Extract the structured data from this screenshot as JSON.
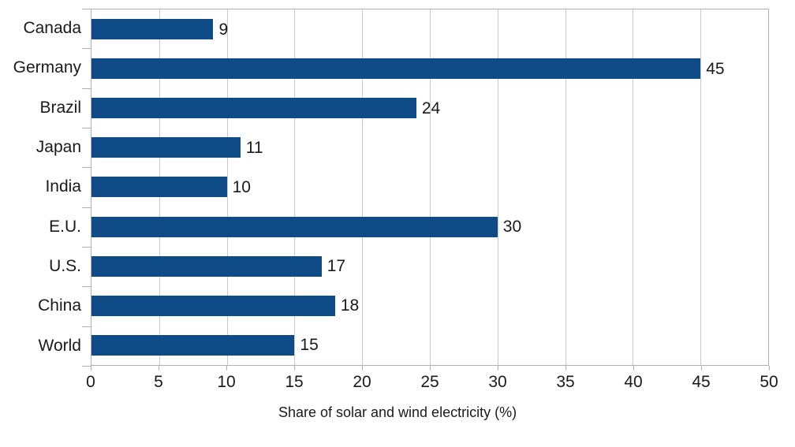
{
  "chart_data": {
    "type": "bar",
    "orientation": "horizontal",
    "categories": [
      "Canada",
      "Germany",
      "Brazil",
      "Japan",
      "India",
      "E.U.",
      "U.S.",
      "China",
      "World"
    ],
    "values": [
      9,
      45,
      24,
      11,
      10,
      30,
      17,
      18,
      15
    ],
    "value_labels": [
      "9",
      "45",
      "24",
      "11",
      "10",
      "30",
      "17",
      "18",
      "15"
    ],
    "title": "",
    "xlabel": "Share of solar and wind electricity (%)",
    "ylabel": "",
    "xlim": [
      0,
      50
    ],
    "xticks": [
      0,
      5,
      10,
      15,
      20,
      25,
      30,
      35,
      40,
      45,
      50
    ],
    "grid": "vertical",
    "legend": "none"
  },
  "colors": {
    "bar": "#0f4c87",
    "grid": "#c8c8c8",
    "axis": "#b0b0b0",
    "text": "#1a1a1a",
    "background": "#ffffff"
  }
}
